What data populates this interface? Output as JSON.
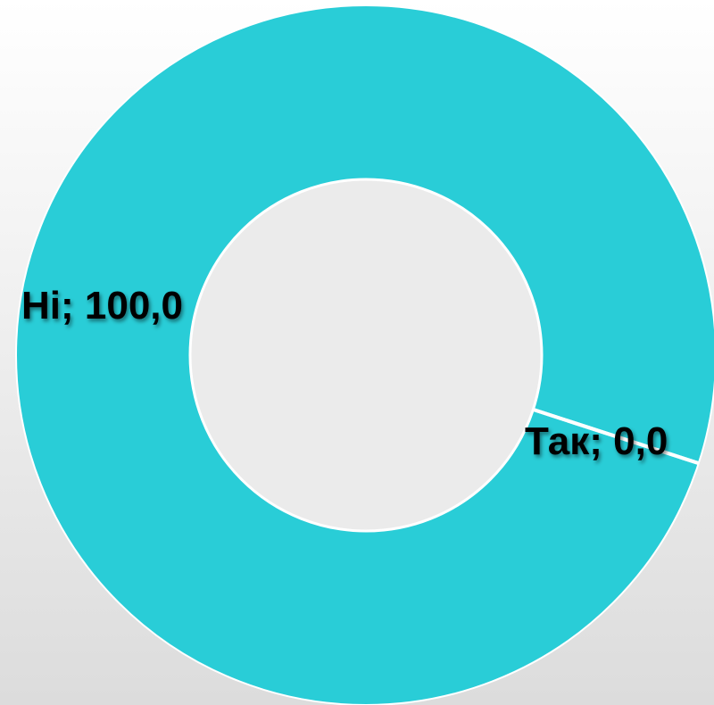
{
  "chart_data": {
    "type": "donut",
    "categories": [
      "Так",
      "Ні"
    ],
    "values": [
      0,
      100
    ],
    "value_labels": [
      "0,0",
      "100,0"
    ],
    "label_separator": "; ",
    "color": "#29cdd7"
  }
}
